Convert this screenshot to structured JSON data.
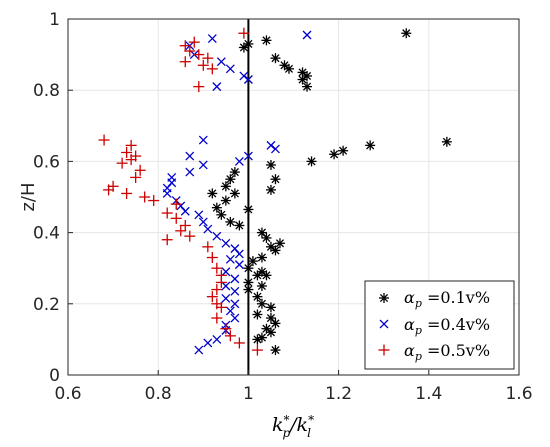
{
  "chart_data": {
    "type": "scatter",
    "xlabel": "k_p*/k_l*",
    "ylabel": "z/H",
    "xlim": [
      0.6,
      1.6
    ],
    "ylim": [
      0,
      1
    ],
    "xticks": [
      0.6,
      0.8,
      1,
      1.2,
      1.4,
      1.6
    ],
    "xtick_labels": [
      "0.6",
      "0.8",
      "1",
      "1.2",
      "1.4",
      "1.6"
    ],
    "yticks": [
      0,
      0.2,
      0.4,
      0.6,
      0.8,
      1
    ],
    "ytick_labels": [
      "0",
      "0.2",
      "0.4",
      "0.6",
      "0.8",
      "1"
    ],
    "grid": true,
    "legend_position": "bottom-right",
    "reference_line": {
      "x": 1.0,
      "color": "#000000"
    },
    "series": [
      {
        "name": "α_p =0.1v%",
        "marker": "asterisk",
        "color": "#000000",
        "points": [
          [
            1.35,
            0.96
          ],
          [
            1.04,
            0.94
          ],
          [
            1.0,
            0.93
          ],
          [
            0.99,
            0.92
          ],
          [
            1.06,
            0.89
          ],
          [
            1.08,
            0.87
          ],
          [
            1.09,
            0.86
          ],
          [
            1.12,
            0.85
          ],
          [
            1.13,
            0.84
          ],
          [
            1.12,
            0.83
          ],
          [
            1.13,
            0.81
          ],
          [
            1.44,
            0.655
          ],
          [
            1.27,
            0.645
          ],
          [
            1.21,
            0.63
          ],
          [
            1.19,
            0.62
          ],
          [
            1.14,
            0.6
          ],
          [
            1.05,
            0.59
          ],
          [
            1.06,
            0.55
          ],
          [
            1.05,
            0.52
          ],
          [
            0.97,
            0.57
          ],
          [
            0.96,
            0.55
          ],
          [
            0.95,
            0.53
          ],
          [
            0.97,
            0.51
          ],
          [
            0.92,
            0.51
          ],
          [
            0.95,
            0.49
          ],
          [
            0.93,
            0.47
          ],
          [
            1.0,
            0.465
          ],
          [
            0.94,
            0.45
          ],
          [
            0.96,
            0.43
          ],
          [
            0.98,
            0.42
          ],
          [
            1.03,
            0.4
          ],
          [
            1.04,
            0.385
          ],
          [
            1.07,
            0.37
          ],
          [
            1.05,
            0.36
          ],
          [
            1.06,
            0.35
          ],
          [
            1.03,
            0.33
          ],
          [
            1.01,
            0.32
          ],
          [
            1.0,
            0.3
          ],
          [
            1.03,
            0.29
          ],
          [
            1.02,
            0.28
          ],
          [
            1.04,
            0.28
          ],
          [
            1.0,
            0.26
          ],
          [
            1.03,
            0.25
          ],
          [
            1.0,
            0.24
          ],
          [
            1.02,
            0.22
          ],
          [
            1.03,
            0.2
          ],
          [
            1.05,
            0.19
          ],
          [
            1.02,
            0.17
          ],
          [
            1.05,
            0.16
          ],
          [
            1.06,
            0.145
          ],
          [
            1.04,
            0.13
          ],
          [
            1.05,
            0.12
          ],
          [
            1.03,
            0.105
          ],
          [
            1.02,
            0.1
          ],
          [
            1.06,
            0.07
          ]
        ]
      },
      {
        "name": "α_p =0.4v%",
        "marker": "x",
        "color": "#0000cc",
        "points": [
          [
            1.13,
            0.955
          ],
          [
            0.92,
            0.945
          ],
          [
            0.87,
            0.925
          ],
          [
            0.88,
            0.9
          ],
          [
            0.94,
            0.88
          ],
          [
            0.96,
            0.86
          ],
          [
            0.99,
            0.84
          ],
          [
            1.0,
            0.83
          ],
          [
            0.93,
            0.81
          ],
          [
            0.9,
            0.66
          ],
          [
            1.05,
            0.645
          ],
          [
            1.06,
            0.635
          ],
          [
            0.87,
            0.615
          ],
          [
            1.0,
            0.615
          ],
          [
            0.98,
            0.6
          ],
          [
            0.9,
            0.59
          ],
          [
            0.87,
            0.57
          ],
          [
            0.83,
            0.555
          ],
          [
            0.83,
            0.54
          ],
          [
            0.82,
            0.525
          ],
          [
            0.82,
            0.51
          ],
          [
            0.84,
            0.49
          ],
          [
            0.85,
            0.475
          ],
          [
            0.86,
            0.46
          ],
          [
            0.89,
            0.45
          ],
          [
            0.9,
            0.43
          ],
          [
            0.91,
            0.41
          ],
          [
            0.93,
            0.39
          ],
          [
            0.95,
            0.37
          ],
          [
            0.97,
            0.355
          ],
          [
            0.98,
            0.34
          ],
          [
            0.96,
            0.325
          ],
          [
            0.98,
            0.31
          ],
          [
            0.95,
            0.29
          ],
          [
            0.97,
            0.27
          ],
          [
            0.95,
            0.25
          ],
          [
            0.97,
            0.235
          ],
          [
            0.95,
            0.215
          ],
          [
            0.97,
            0.2
          ],
          [
            0.96,
            0.18
          ],
          [
            0.97,
            0.16
          ],
          [
            0.95,
            0.14
          ],
          [
            0.95,
            0.125
          ],
          [
            0.93,
            0.1
          ],
          [
            0.91,
            0.09
          ],
          [
            0.89,
            0.07
          ]
        ]
      },
      {
        "name": "α_p =0.5v%",
        "marker": "plus",
        "color": "#cc0000",
        "points": [
          [
            0.99,
            0.96
          ],
          [
            0.88,
            0.935
          ],
          [
            0.86,
            0.925
          ],
          [
            0.87,
            0.91
          ],
          [
            0.89,
            0.9
          ],
          [
            0.91,
            0.89
          ],
          [
            0.86,
            0.88
          ],
          [
            0.9,
            0.87
          ],
          [
            0.92,
            0.86
          ],
          [
            0.89,
            0.81
          ],
          [
            0.68,
            0.66
          ],
          [
            0.74,
            0.645
          ],
          [
            0.73,
            0.625
          ],
          [
            0.75,
            0.615
          ],
          [
            0.74,
            0.605
          ],
          [
            0.72,
            0.595
          ],
          [
            0.76,
            0.575
          ],
          [
            0.75,
            0.555
          ],
          [
            0.7,
            0.53
          ],
          [
            0.69,
            0.52
          ],
          [
            0.73,
            0.51
          ],
          [
            0.77,
            0.5
          ],
          [
            0.79,
            0.49
          ],
          [
            0.84,
            0.48
          ],
          [
            0.82,
            0.455
          ],
          [
            0.84,
            0.44
          ],
          [
            0.86,
            0.42
          ],
          [
            0.85,
            0.405
          ],
          [
            0.87,
            0.39
          ],
          [
            0.82,
            0.38
          ],
          [
            0.91,
            0.36
          ],
          [
            0.92,
            0.33
          ],
          [
            0.93,
            0.3
          ],
          [
            0.94,
            0.28
          ],
          [
            0.94,
            0.26
          ],
          [
            0.93,
            0.24
          ],
          [
            0.92,
            0.22
          ],
          [
            0.93,
            0.2
          ],
          [
            0.94,
            0.19
          ],
          [
            0.93,
            0.16
          ],
          [
            0.95,
            0.13
          ],
          [
            0.96,
            0.11
          ],
          [
            0.98,
            0.09
          ],
          [
            1.02,
            0.07
          ]
        ]
      }
    ]
  },
  "legend": {
    "entries": [
      {
        "symbol": "α",
        "sub": "p",
        "rest": " =0.1v%"
      },
      {
        "symbol": "α",
        "sub": "p",
        "rest": " =0.4v%"
      },
      {
        "symbol": "α",
        "sub": "p",
        "rest": " =0.5v%"
      }
    ]
  },
  "labels": {
    "x_main": "k",
    "x_sub": "p",
    "x_sup": "*",
    "x_slash": "/k",
    "x_sub2": "l",
    "x_sup2": "*",
    "y": "z/H"
  }
}
